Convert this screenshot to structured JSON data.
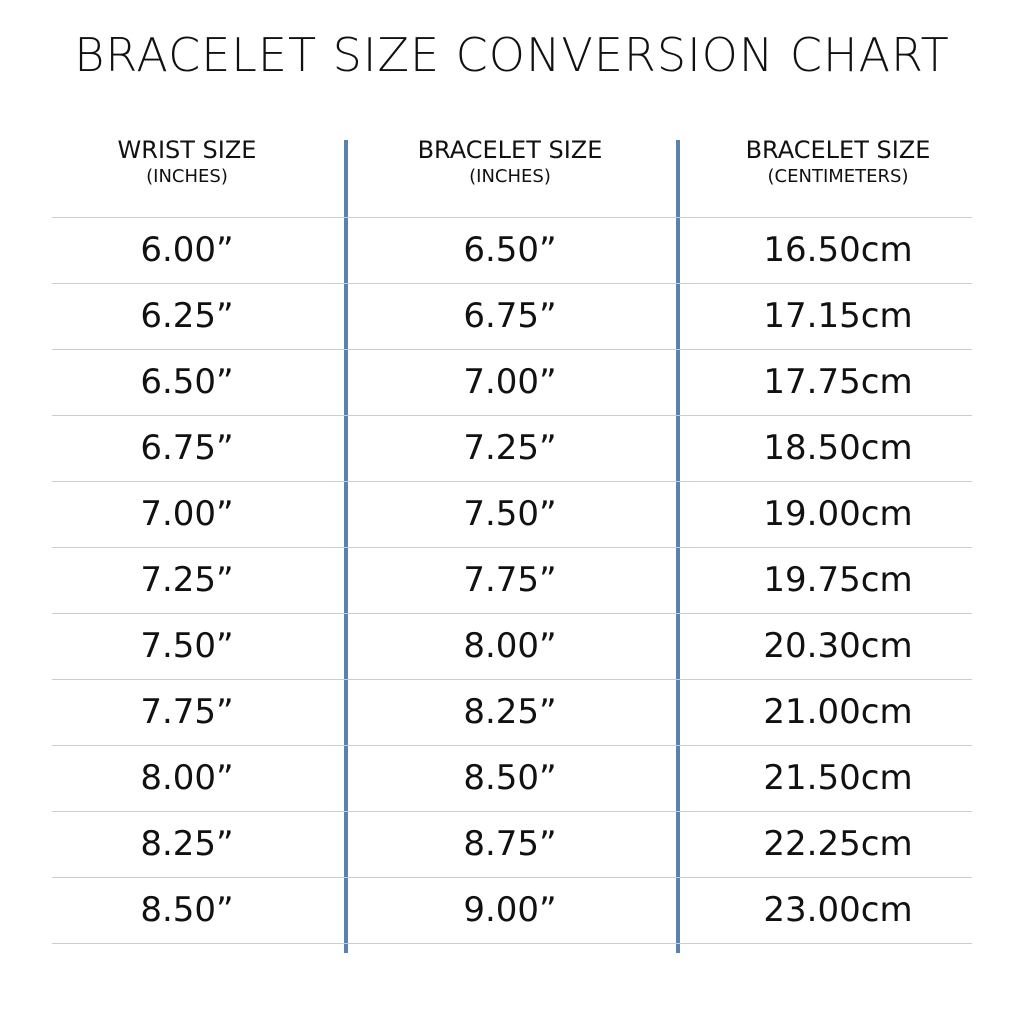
{
  "title": "BRACELET SIZE CONVERSION CHART",
  "table": {
    "headers": [
      {
        "label": "WRIST SIZE",
        "unit": "(INCHES)"
      },
      {
        "label": "BRACELET SIZE",
        "unit": "(INCHES)"
      },
      {
        "label": "BRACELET SIZE",
        "unit": "(CENTIMETERS)"
      }
    ],
    "rows": [
      [
        "6.00”",
        "6.50”",
        "16.50cm"
      ],
      [
        "6.25”",
        "6.75”",
        "17.15cm"
      ],
      [
        "6.50”",
        "7.00”",
        "17.75cm"
      ],
      [
        "6.75”",
        "7.25”",
        "18.50cm"
      ],
      [
        "7.00”",
        "7.50”",
        "19.00cm"
      ],
      [
        "7.25”",
        "7.75”",
        "19.75cm"
      ],
      [
        "7.50”",
        "8.00”",
        "20.30cm"
      ],
      [
        "7.75”",
        "8.25”",
        "21.00cm"
      ],
      [
        "8.00”",
        "8.50”",
        "21.50cm"
      ],
      [
        "8.25”",
        "8.75”",
        "22.25cm"
      ],
      [
        "8.50”",
        "9.00”",
        "23.00cm"
      ]
    ]
  }
}
